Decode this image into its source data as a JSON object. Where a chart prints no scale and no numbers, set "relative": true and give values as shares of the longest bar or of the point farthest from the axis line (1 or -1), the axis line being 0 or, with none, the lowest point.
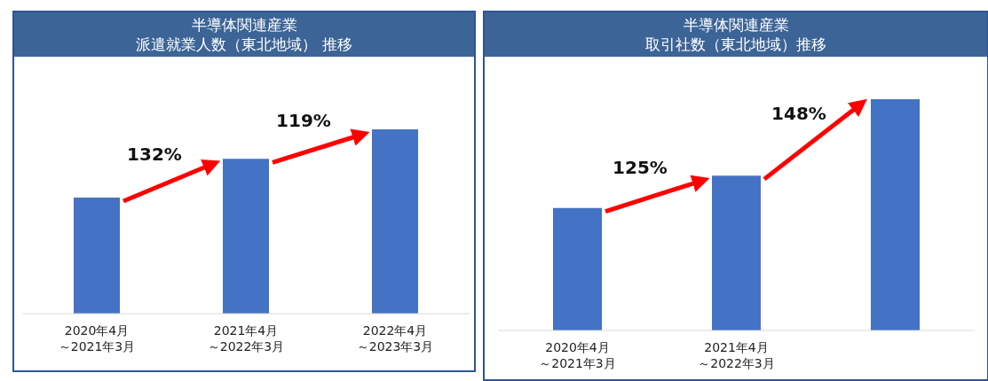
{
  "chart_data": [
    {
      "type": "bar",
      "title": "半導体関連産業",
      "subtitle": "派遣就業人数（東北地域） 推移",
      "categories": [
        "2020年4月～2021年3月",
        "2021年4月～2022年3月",
        "2022年4月～2023年3月"
      ],
      "values": [
        0.63,
        0.84,
        1
      ],
      "color": "#4472c4",
      "relative": true,
      "annotations": [
        "132%",
        "119%"
      ]
    },
    {
      "type": "bar",
      "title": "半導体関連産業",
      "subtitle": "取引社数（東北地域）推移",
      "categories": [
        "2020年4月～2021年3月",
        "2021年4月～2022年3月",
        null
      ],
      "values": [
        0.53,
        0.67,
        1
      ],
      "color": "#4472c4",
      "relative": true,
      "annotations": [
        "125%",
        "148%"
      ]
    }
  ]
}
